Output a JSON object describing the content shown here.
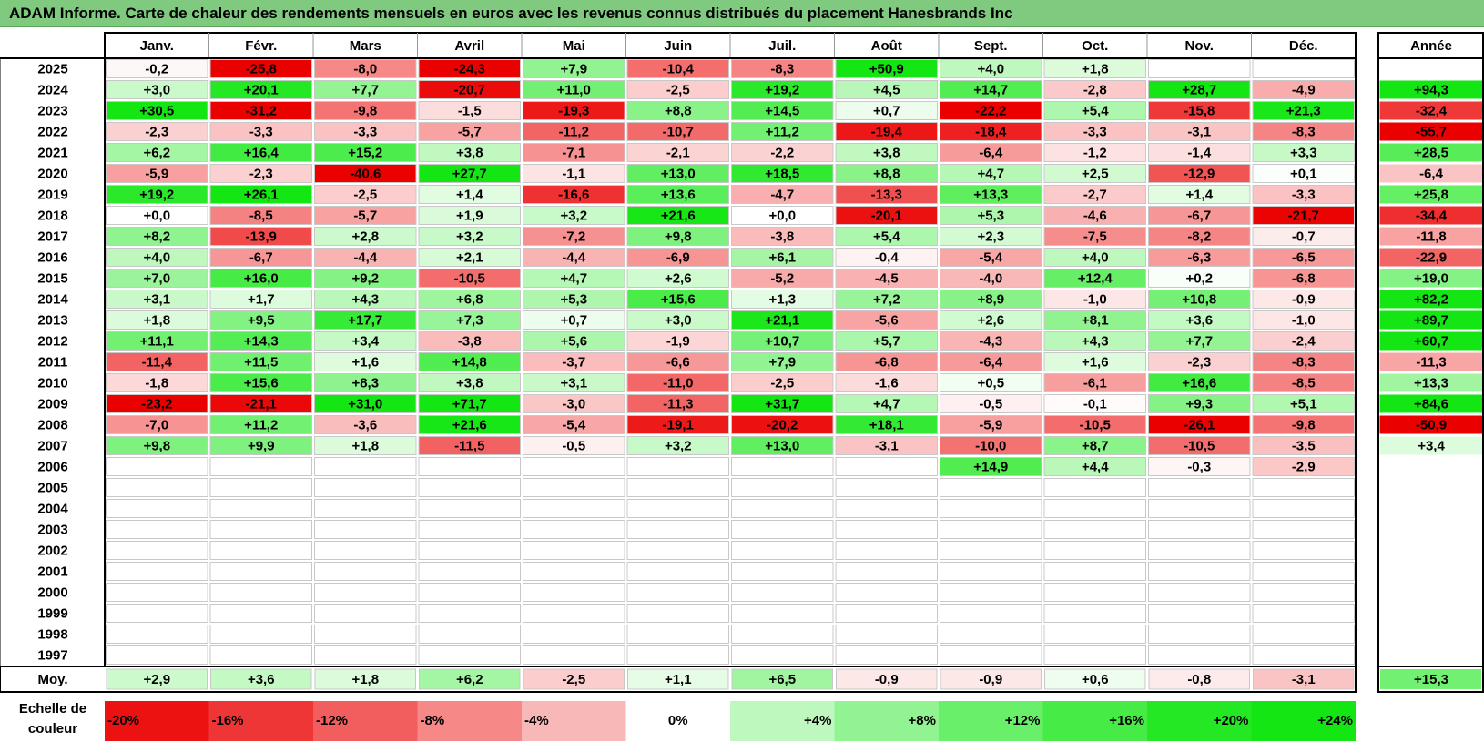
{
  "title": "ADAM Informe. Carte de chaleur des rendements mensuels en euros avec les revenus connus distribués du placement Hanesbrands Inc",
  "chart_data": {
    "type": "heatmap",
    "months": [
      "Janv.",
      "Févr.",
      "Mars",
      "Avril",
      "Mai",
      "Juin",
      "Juil.",
      "Août",
      "Sept.",
      "Oct.",
      "Nov.",
      "Déc."
    ],
    "year_header": "Année",
    "years": [
      "2025",
      "2024",
      "2023",
      "2022",
      "2021",
      "2020",
      "2019",
      "2018",
      "2017",
      "2016",
      "2015",
      "2014",
      "2013",
      "2012",
      "2011",
      "2010",
      "2009",
      "2008",
      "2007",
      "2006",
      "2005",
      "2004",
      "2003",
      "2002",
      "2001",
      "2000",
      "1999",
      "1998",
      "1997"
    ],
    "values": [
      [
        "-0,2",
        "-25,8",
        "-8,0",
        "-24,3",
        "+7,9",
        "-10,4",
        "-8,3",
        "+50,9",
        "+4,0",
        "+1,8",
        "",
        ""
      ],
      [
        "+3,0",
        "+20,1",
        "+7,7",
        "-20,7",
        "+11,0",
        "-2,5",
        "+19,2",
        "+4,5",
        "+14,7",
        "-2,8",
        "+28,7",
        "-4,9"
      ],
      [
        "+30,5",
        "-31,2",
        "-9,8",
        "-1,5",
        "-19,3",
        "+8,8",
        "+14,5",
        "+0,7",
        "-22,2",
        "+5,4",
        "-15,8",
        "+21,3"
      ],
      [
        "-2,3",
        "-3,3",
        "-3,3",
        "-5,7",
        "-11,2",
        "-10,7",
        "+11,2",
        "-19,4",
        "-18,4",
        "-3,3",
        "-3,1",
        "-8,3"
      ],
      [
        "+6,2",
        "+16,4",
        "+15,2",
        "+3,8",
        "-7,1",
        "-2,1",
        "-2,2",
        "+3,8",
        "-6,4",
        "-1,2",
        "-1,4",
        "+3,3"
      ],
      [
        "-5,9",
        "-2,3",
        "-40,6",
        "+27,7",
        "-1,1",
        "+13,0",
        "+18,5",
        "+8,8",
        "+4,7",
        "+2,5",
        "-12,9",
        "+0,1"
      ],
      [
        "+19,2",
        "+26,1",
        "-2,5",
        "+1,4",
        "-16,6",
        "+13,6",
        "-4,7",
        "-13,3",
        "+13,3",
        "-2,7",
        "+1,4",
        "-3,3"
      ],
      [
        "+0,0",
        "-8,5",
        "-5,7",
        "+1,9",
        "+3,2",
        "+21,6",
        "+0,0",
        "-20,1",
        "+5,3",
        "-4,6",
        "-6,7",
        "-21,7"
      ],
      [
        "+8,2",
        "-13,9",
        "+2,8",
        "+3,2",
        "-7,2",
        "+9,8",
        "-3,8",
        "+5,4",
        "+2,3",
        "-7,5",
        "-8,2",
        "-0,7"
      ],
      [
        "+4,0",
        "-6,7",
        "-4,4",
        "+2,1",
        "-4,4",
        "-6,9",
        "+6,1",
        "-0,4",
        "-5,4",
        "+4,0",
        "-6,3",
        "-6,5"
      ],
      [
        "+7,0",
        "+16,0",
        "+9,2",
        "-10,5",
        "+4,7",
        "+2,6",
        "-5,2",
        "-4,5",
        "-4,0",
        "+12,4",
        "+0,2",
        "-6,8"
      ],
      [
        "+3,1",
        "+1,7",
        "+4,3",
        "+6,8",
        "+5,3",
        "+15,6",
        "+1,3",
        "+7,2",
        "+8,9",
        "-1,0",
        "+10,8",
        "-0,9"
      ],
      [
        "+1,8",
        "+9,5",
        "+17,7",
        "+7,3",
        "+0,7",
        "+3,0",
        "+21,1",
        "-5,6",
        "+2,6",
        "+8,1",
        "+3,6",
        "-1,0"
      ],
      [
        "+11,1",
        "+14,3",
        "+3,4",
        "-3,8",
        "+5,6",
        "-1,9",
        "+10,7",
        "+5,7",
        "-4,3",
        "+4,3",
        "+7,7",
        "-2,4"
      ],
      [
        "-11,4",
        "+11,5",
        "+1,6",
        "+14,8",
        "-3,7",
        "-6,6",
        "+7,9",
        "-6,8",
        "-6,4",
        "+1,6",
        "-2,3",
        "-8,3"
      ],
      [
        "-1,8",
        "+15,6",
        "+8,3",
        "+3,8",
        "+3,1",
        "-11,0",
        "-2,5",
        "-1,6",
        "+0,5",
        "-6,1",
        "+16,6",
        "-8,5"
      ],
      [
        "-23,2",
        "-21,1",
        "+31,0",
        "+71,7",
        "-3,0",
        "-11,3",
        "+31,7",
        "+4,7",
        "-0,5",
        "-0,1",
        "+9,3",
        "+5,1"
      ],
      [
        "-7,0",
        "+11,2",
        "-3,6",
        "+21,6",
        "-5,4",
        "-19,1",
        "-20,2",
        "+18,1",
        "-5,9",
        "-10,5",
        "-26,1",
        "-9,8"
      ],
      [
        "+9,8",
        "+9,9",
        "+1,8",
        "-11,5",
        "-0,5",
        "+3,2",
        "+13,0",
        "-3,1",
        "-10,0",
        "+8,7",
        "-10,5",
        "-3,5"
      ],
      [
        "",
        "",
        "",
        "",
        "",
        "",
        "",
        "",
        "+14,9",
        "+4,4",
        "-0,3",
        "-2,9"
      ],
      [
        "",
        "",
        "",
        "",
        "",
        "",
        "",
        "",
        "",
        "",
        "",
        ""
      ],
      [
        "",
        "",
        "",
        "",
        "",
        "",
        "",
        "",
        "",
        "",
        "",
        ""
      ],
      [
        "",
        "",
        "",
        "",
        "",
        "",
        "",
        "",
        "",
        "",
        "",
        ""
      ],
      [
        "",
        "",
        "",
        "",
        "",
        "",
        "",
        "",
        "",
        "",
        "",
        ""
      ],
      [
        "",
        "",
        "",
        "",
        "",
        "",
        "",
        "",
        "",
        "",
        "",
        ""
      ],
      [
        "",
        "",
        "",
        "",
        "",
        "",
        "",
        "",
        "",
        "",
        "",
        ""
      ],
      [
        "",
        "",
        "",
        "",
        "",
        "",
        "",
        "",
        "",
        "",
        "",
        ""
      ],
      [
        "",
        "",
        "",
        "",
        "",
        "",
        "",
        "",
        "",
        "",
        "",
        ""
      ],
      [
        "",
        "",
        "",
        "",
        "",
        "",
        "",
        "",
        "",
        "",
        "",
        ""
      ]
    ],
    "year_totals": [
      "",
      "+94,3",
      "-32,4",
      "-55,7",
      "+28,5",
      "-6,4",
      "+25,8",
      "-34,4",
      "-11,8",
      "-22,9",
      "+19,0",
      "+82,2",
      "+89,7",
      "+60,7",
      "-11,3",
      "+13,3",
      "+84,6",
      "-50,9",
      "+3,4",
      "",
      "",
      "",
      "",
      "",
      "",
      "",
      "",
      "",
      ""
    ],
    "avg_label": "Moy.",
    "averages": [
      "+2,9",
      "+3,6",
      "+1,8",
      "+6,2",
      "-2,5",
      "+1,1",
      "+6,5",
      "-0,9",
      "-0,9",
      "+0,6",
      "-0,8",
      "-3,1"
    ],
    "avg_total": "+15,3",
    "scale_label": "Echelle de couleur",
    "scale": [
      {
        "label": "-20%",
        "value": -20
      },
      {
        "label": "-16%",
        "value": -16
      },
      {
        "label": "-12%",
        "value": -12
      },
      {
        "label": "-8%",
        "value": -8
      },
      {
        "label": "-4%",
        "value": -4
      },
      {
        "label": "0%",
        "value": 0
      },
      {
        "label": "+4%",
        "value": 4
      },
      {
        "label": "+8%",
        "value": 8
      },
      {
        "label": "+12%",
        "value": 12
      },
      {
        "label": "+16%",
        "value": 16
      },
      {
        "label": "+20%",
        "value": 20
      },
      {
        "label": "+24%",
        "value": 24
      }
    ],
    "colors": {
      "negative": "#ff0000",
      "positive": "#00ff00",
      "neutral": "#ffffff",
      "title_bg": "#7fca7f"
    }
  }
}
